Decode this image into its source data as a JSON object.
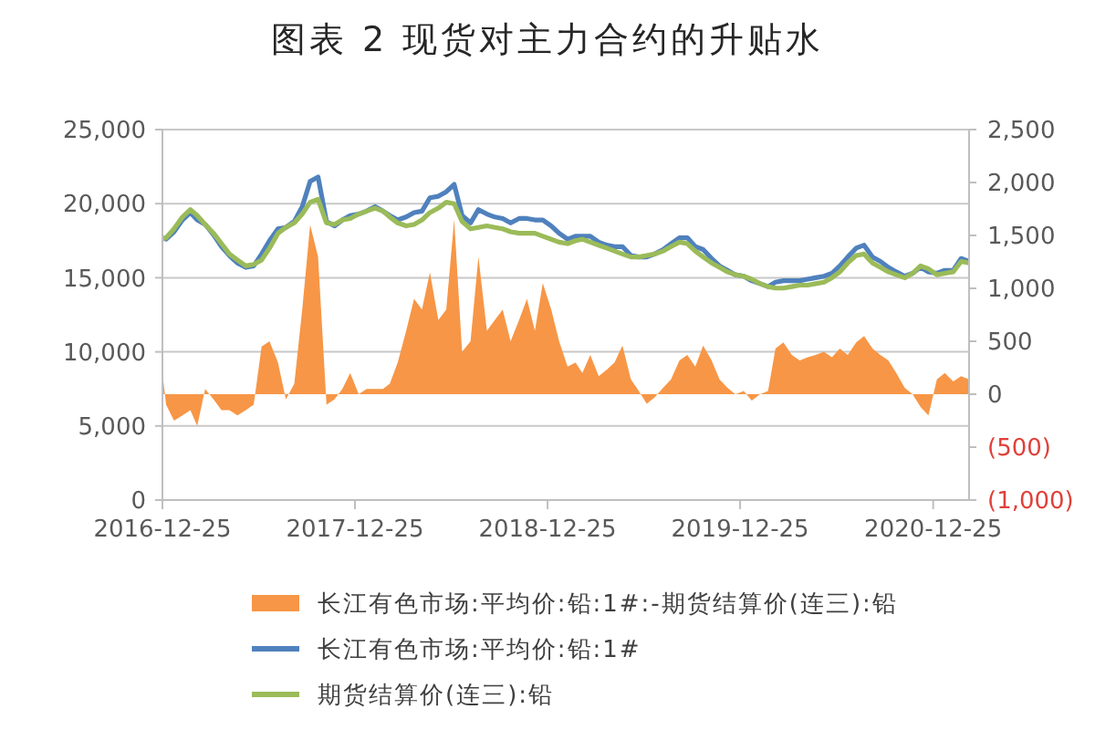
{
  "chart_data": {
    "type": "line",
    "title": "图表 2 现货对主力合约的升贴水",
    "x": [
      "2016-12-25",
      "2017-01-01",
      "2017-01-16",
      "2017-02-01",
      "2017-02-16",
      "2017-03-01",
      "2017-03-16",
      "2017-04-01",
      "2017-04-16",
      "2017-05-01",
      "2017-05-16",
      "2017-06-01",
      "2017-06-16",
      "2017-07-01",
      "2017-07-16",
      "2017-08-01",
      "2017-08-16",
      "2017-09-01",
      "2017-09-16",
      "2017-10-01",
      "2017-10-16",
      "2017-11-01",
      "2017-11-16",
      "2017-12-01",
      "2017-12-16",
      "2018-01-01",
      "2018-01-16",
      "2018-02-01",
      "2018-02-16",
      "2018-03-01",
      "2018-03-16",
      "2018-04-01",
      "2018-04-16",
      "2018-05-01",
      "2018-05-16",
      "2018-06-01",
      "2018-06-16",
      "2018-07-01",
      "2018-07-16",
      "2018-08-01",
      "2018-08-16",
      "2018-09-01",
      "2018-09-16",
      "2018-10-01",
      "2018-10-16",
      "2018-11-01",
      "2018-11-16",
      "2018-12-01",
      "2018-12-16",
      "2019-01-01",
      "2019-01-16",
      "2019-02-01",
      "2019-02-16",
      "2019-03-01",
      "2019-03-16",
      "2019-04-01",
      "2019-04-16",
      "2019-05-01",
      "2019-05-16",
      "2019-06-01",
      "2019-06-16",
      "2019-07-01",
      "2019-07-16",
      "2019-08-01",
      "2019-08-16",
      "2019-09-01",
      "2019-09-16",
      "2019-10-01",
      "2019-10-16",
      "2019-11-01",
      "2019-11-16",
      "2019-12-01",
      "2019-12-16",
      "2020-01-01",
      "2020-01-16",
      "2020-02-01",
      "2020-02-16",
      "2020-03-01",
      "2020-03-16",
      "2020-04-01",
      "2020-04-16",
      "2020-05-01",
      "2020-05-16",
      "2020-06-01",
      "2020-06-16",
      "2020-07-01",
      "2020-07-16",
      "2020-08-01",
      "2020-08-16",
      "2020-09-01",
      "2020-09-16",
      "2020-10-01",
      "2020-10-16",
      "2020-11-01",
      "2020-11-16",
      "2020-12-01",
      "2020-12-16",
      "2021-01-01",
      "2021-01-16",
      "2021-02-01",
      "2021-02-16",
      "2021-03-03"
    ],
    "series": [
      {
        "name": "长江有色市场:平均价:铅:1#:-期货结算价(连三):铅",
        "type": "area",
        "axis": "y2",
        "color": "#f79646",
        "values": [
          200,
          -100,
          -250,
          -200,
          -150,
          -300,
          50,
          -50,
          -150,
          -150,
          -200,
          -150,
          -100,
          450,
          500,
          300,
          -50,
          100,
          800,
          1600,
          1300,
          -100,
          -50,
          50,
          200,
          0,
          50,
          50,
          50,
          100,
          300,
          600,
          900,
          800,
          1150,
          700,
          800,
          1650,
          400,
          500,
          1300,
          600,
          700,
          800,
          500,
          700,
          900,
          600,
          1050,
          800,
          500,
          260,
          300,
          200,
          370,
          170,
          230,
          300,
          460,
          140,
          30,
          -90,
          -30,
          60,
          140,
          320,
          370,
          260,
          460,
          320,
          140,
          60,
          0,
          30,
          -60,
          0,
          30,
          430,
          490,
          370,
          320,
          350,
          370,
          400,
          350,
          430,
          370,
          490,
          550,
          430,
          370,
          320,
          200,
          60,
          0,
          -120,
          -200,
          140,
          200,
          120,
          170,
          140
        ]
      },
      {
        "name": "长江有色市场:平均价:铅:1#",
        "color": "#4f81bd",
        "values": [
          17700,
          17600,
          18100,
          18900,
          19400,
          18900,
          18600,
          17900,
          17100,
          16500,
          16000,
          15700,
          15800,
          16600,
          17500,
          18300,
          18400,
          18800,
          19800,
          21500,
          21800,
          18800,
          18500,
          18900,
          19200,
          19300,
          19500,
          19800,
          19500,
          19200,
          18900,
          19100,
          19400,
          19500,
          20400,
          20500,
          20800,
          21300,
          19200,
          18700,
          19600,
          19300,
          19100,
          19000,
          18700,
          19000,
          19000,
          18900,
          18900,
          18500,
          18000,
          17600,
          17800,
          17800,
          17800,
          17400,
          17200,
          17100,
          17100,
          16500,
          16400,
          16400,
          16600,
          16900,
          17300,
          17700,
          17700,
          17100,
          16900,
          16300,
          15800,
          15500,
          15200,
          15100,
          14800,
          14600,
          14400,
          14700,
          14800,
          14800,
          14800,
          14900,
          15000,
          15100,
          15300,
          15800,
          16400,
          17000,
          17200,
          16400,
          16100,
          15700,
          15400,
          15100,
          15300,
          15700,
          15400,
          15300,
          15500,
          15500,
          16300,
          16100
        ]
      },
      {
        "name": "期货结算价(连三):铅",
        "color": "#9bbb59",
        "values": [
          17600,
          17700,
          18300,
          19100,
          19600,
          19200,
          18600,
          18000,
          17300,
          16600,
          16200,
          15800,
          15900,
          16200,
          17000,
          18000,
          18400,
          18700,
          19300,
          20100,
          20300,
          18700,
          18600,
          18900,
          19000,
          19300,
          19500,
          19700,
          19500,
          19100,
          18700,
          18500,
          18600,
          18900,
          19400,
          19700,
          20100,
          20000,
          18800,
          18300,
          18400,
          18500,
          18400,
          18300,
          18100,
          18000,
          18000,
          18000,
          17800,
          17600,
          17400,
          17300,
          17500,
          17600,
          17400,
          17200,
          17000,
          16800,
          16600,
          16400,
          16400,
          16500,
          16600,
          16800,
          17100,
          17400,
          17300,
          16800,
          16400,
          16000,
          15700,
          15400,
          15200,
          15100,
          14900,
          14600,
          14400,
          14300,
          14300,
          14400,
          14500,
          14500,
          14600,
          14700,
          15000,
          15400,
          16000,
          16500,
          16600,
          16000,
          15700,
          15400,
          15200,
          15000,
          15300,
          15800,
          15600,
          15200,
          15300,
          15400,
          16100,
          16000
        ]
      }
    ],
    "xlim": [
      "2016-12-25",
      "2021-03-03"
    ],
    "xticks": [
      "2016-12-25",
      "2017-12-25",
      "2018-12-25",
      "2019-12-25",
      "2020-12-25"
    ],
    "ylim": [
      0,
      25000
    ],
    "yticks": [
      0,
      {
        "value": 5000,
        "label": "5,000"
      },
      {
        "value": 10000,
        "label": "10,000"
      },
      {
        "value": 15000,
        "label": "15,000"
      },
      {
        "value": 20000,
        "label": "20,000"
      },
      {
        "value": 25000,
        "label": "25,000"
      }
    ],
    "y2lim": [
      -1000,
      2500
    ],
    "y2ticks": [
      {
        "value": -1000,
        "label": "(1,000)"
      },
      {
        "value": -500,
        "label": "(500)"
      },
      0,
      500,
      {
        "value": 1000,
        "label": "1,000"
      },
      {
        "value": 1500,
        "label": "1,500"
      },
      {
        "value": 2000,
        "label": "2,000"
      },
      {
        "value": 2500,
        "label": "2,500"
      }
    ],
    "grid": "y",
    "legend": "bottom"
  }
}
